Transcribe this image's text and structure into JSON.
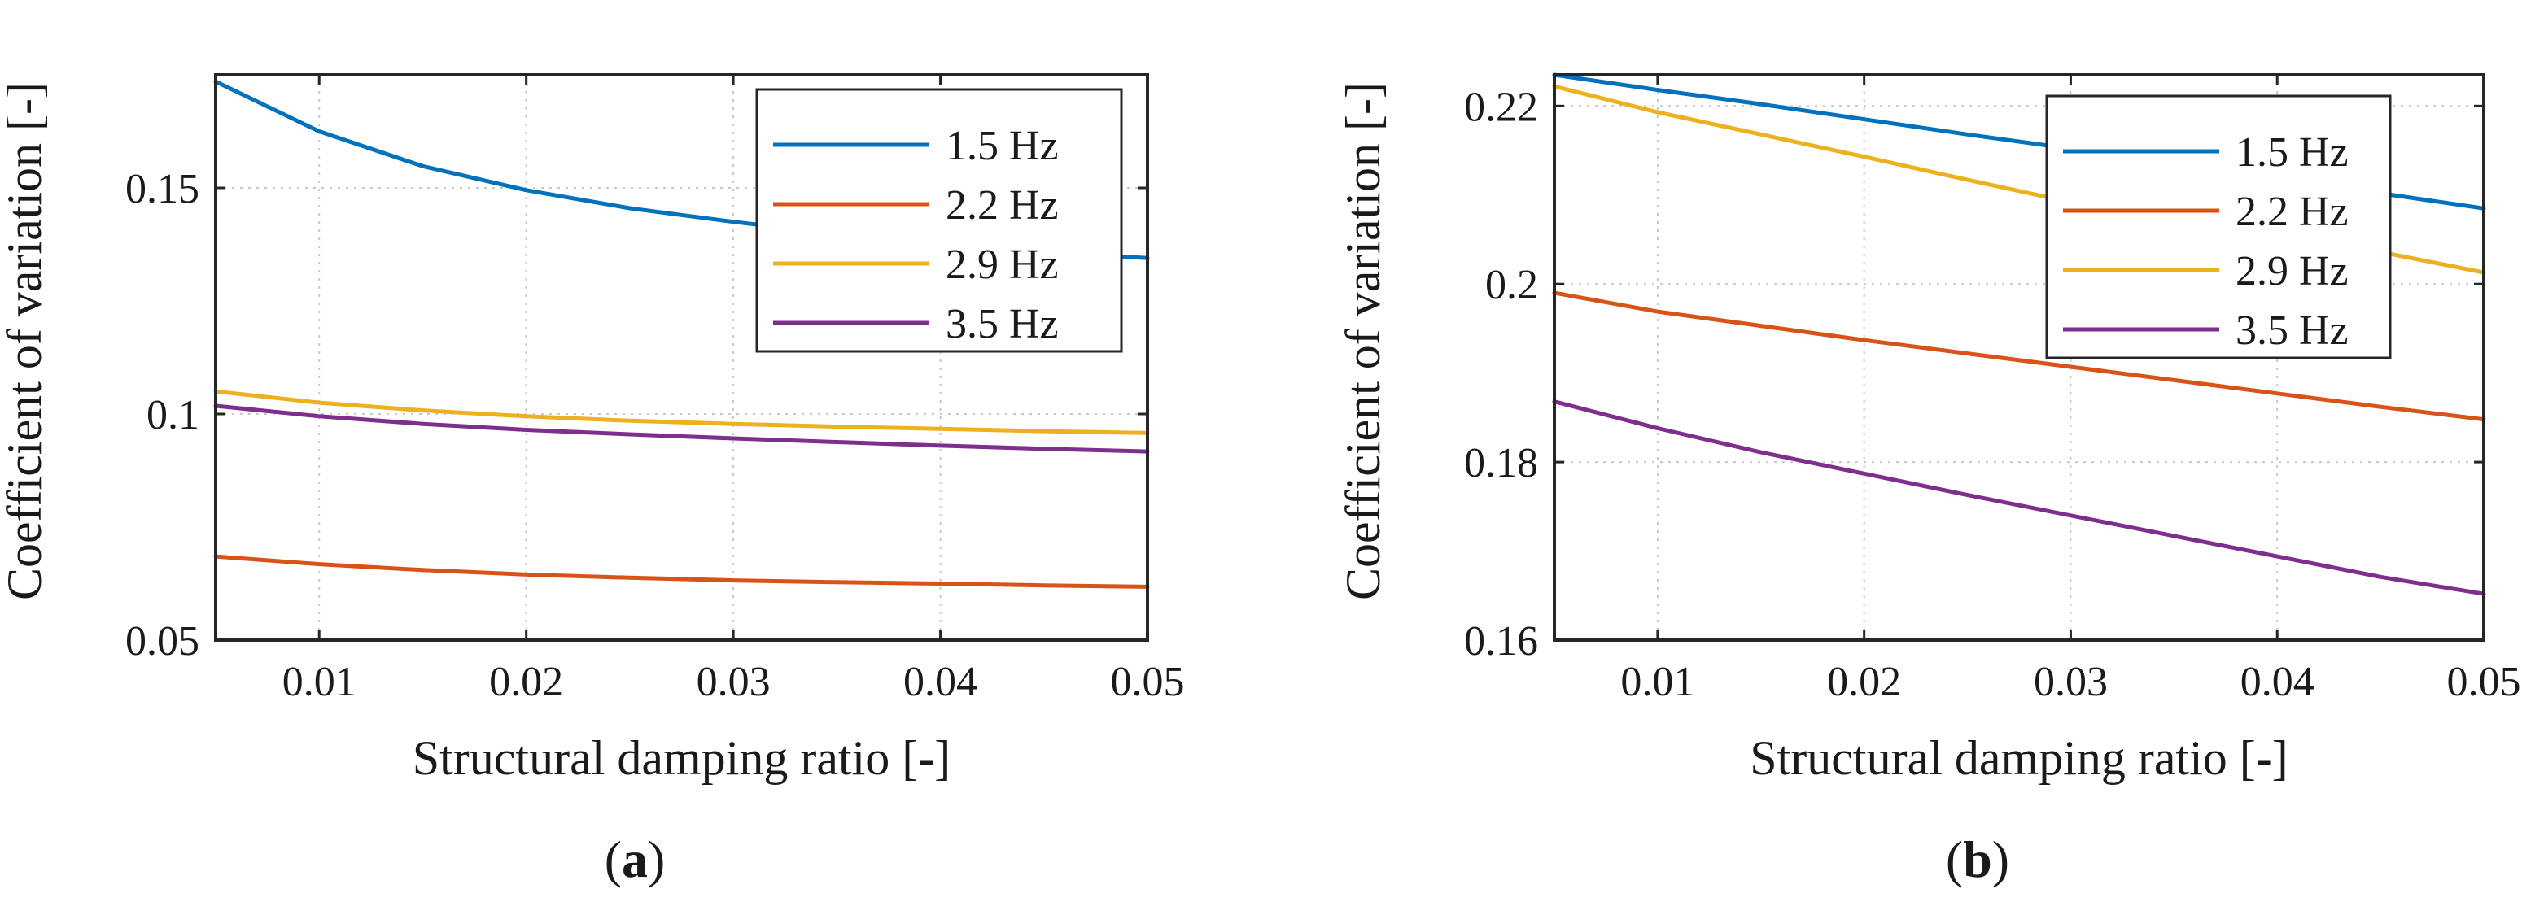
{
  "figure": {
    "panels": [
      {
        "label_open": "(",
        "label_letter": "a",
        "label_close": ")"
      },
      {
        "label_open": "(",
        "label_letter": "b",
        "label_close": ")"
      }
    ]
  },
  "chart_data": [
    {
      "type": "line",
      "xlabel": "Structural damping ratio [-]",
      "ylabel": "Coefficient of variation [-]",
      "xlim": [
        0.005,
        0.05
      ],
      "ylim": [
        0.05,
        0.175
      ],
      "xticks": [
        0.01,
        0.02,
        0.03,
        0.04,
        0.05
      ],
      "xtick_labels": [
        "0.01",
        "0.02",
        "0.03",
        "0.04",
        "0.05"
      ],
      "yticks": [
        0.05,
        0.1,
        0.15
      ],
      "ytick_labels": [
        "0.05",
        "0.1",
        "0.15"
      ],
      "grid": true,
      "legend_position": "top-right",
      "x": [
        0.005,
        0.01,
        0.015,
        0.02,
        0.025,
        0.03,
        0.035,
        0.04,
        0.045,
        0.05
      ],
      "series": [
        {
          "name": "1.5 Hz",
          "color": "#0072BD",
          "values": [
            0.1735,
            0.1625,
            0.1548,
            0.1495,
            0.1455,
            0.1425,
            0.1398,
            0.1378,
            0.1358,
            0.1345
          ]
        },
        {
          "name": "2.2 Hz",
          "color": "#D95319",
          "values": [
            0.0685,
            0.0668,
            0.0655,
            0.0645,
            0.0638,
            0.0632,
            0.0628,
            0.0625,
            0.0621,
            0.0618
          ]
        },
        {
          "name": "2.9 Hz",
          "color": "#EDB120",
          "values": [
            0.105,
            0.1025,
            0.1008,
            0.0995,
            0.0985,
            0.0978,
            0.0972,
            0.0967,
            0.0962,
            0.0958
          ]
        },
        {
          "name": "3.5 Hz",
          "color": "#7E2F8E",
          "values": [
            0.1018,
            0.0995,
            0.0978,
            0.0965,
            0.0955,
            0.0946,
            0.0938,
            0.093,
            0.0923,
            0.0917
          ]
        }
      ]
    },
    {
      "type": "line",
      "xlabel": "Structural damping ratio [-]",
      "ylabel": "Coefficient of variation [-]",
      "xlim": [
        0.005,
        0.05
      ],
      "ylim": [
        0.16,
        0.2235
      ],
      "xticks": [
        0.01,
        0.02,
        0.03,
        0.04,
        0.05
      ],
      "xtick_labels": [
        "0.01",
        "0.02",
        "0.03",
        "0.04",
        "0.05"
      ],
      "yticks": [
        0.16,
        0.18,
        0.2,
        0.22
      ],
      "ytick_labels": [
        "0.16",
        "0.18",
        "0.2",
        "0.22"
      ],
      "grid": true,
      "legend_position": "top-right",
      "x": [
        0.005,
        0.01,
        0.015,
        0.02,
        0.025,
        0.03,
        0.035,
        0.04,
        0.045,
        0.05
      ],
      "series": [
        {
          "name": "1.5 Hz",
          "color": "#0072BD",
          "values": [
            0.2235,
            0.2218,
            0.2202,
            0.2185,
            0.2168,
            0.2152,
            0.2136,
            0.212,
            0.2102,
            0.2085
          ]
        },
        {
          "name": "2.2 Hz",
          "color": "#D95319",
          "values": [
            0.199,
            0.1969,
            0.1953,
            0.1937,
            0.1922,
            0.1907,
            0.1892,
            0.1877,
            0.1862,
            0.1848
          ]
        },
        {
          "name": "2.9 Hz",
          "color": "#EDB120",
          "values": [
            0.2222,
            0.2193,
            0.2168,
            0.2143,
            0.2117,
            0.2092,
            0.2067,
            0.2042,
            0.2036,
            0.2013
          ]
        },
        {
          "name": "3.5 Hz",
          "color": "#7E2F8E",
          "values": [
            0.1868,
            0.1838,
            0.1811,
            0.1787,
            0.1763,
            0.174,
            0.1717,
            0.1694,
            0.1671,
            0.1652
          ]
        }
      ]
    }
  ]
}
